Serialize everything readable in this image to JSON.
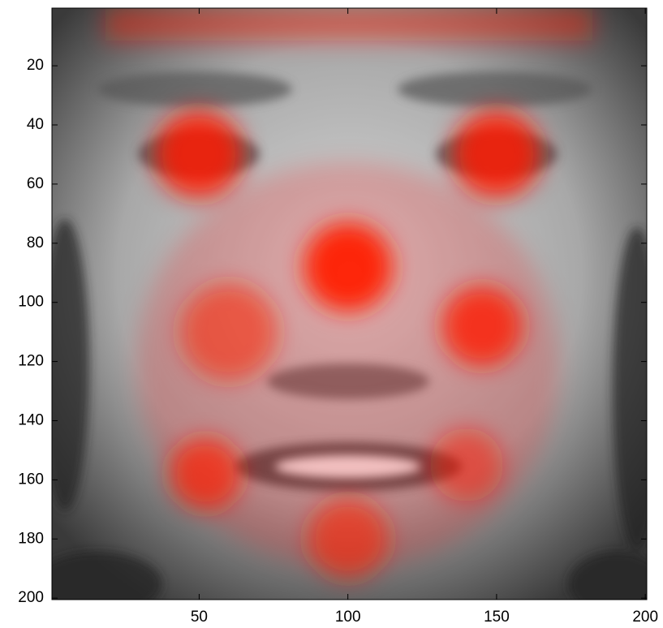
{
  "chart_data": {
    "type": "image",
    "xlim": [
      0.5,
      200.5
    ],
    "ylim": [
      0.5,
      200.5
    ],
    "y_reversed": true,
    "xticks": [
      50,
      100,
      150,
      200
    ],
    "yticks": [
      20,
      40,
      60,
      80,
      100,
      120,
      140,
      160,
      180,
      200
    ]
  }
}
